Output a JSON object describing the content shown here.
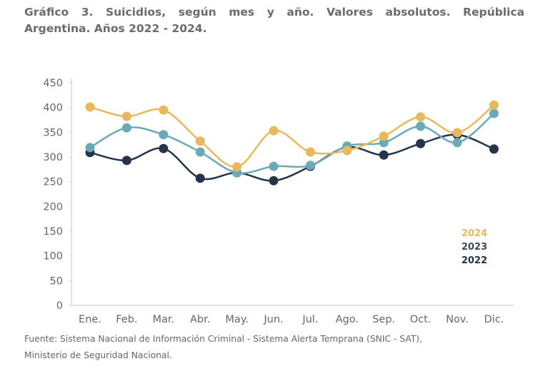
{
  "title_lines": [
    "Gráfico 3. Suicidios, según mes y año. Valores absolutos. República",
    "Argentina. Años 2022 - 2024."
  ],
  "source_lines": [
    "Fuente: Sistema Nacional de Información Criminal - Sistema Alerta Temprana (SNIC - SAT),",
    "Ministerio de Seguridad Nacional."
  ],
  "chart_data": {
    "type": "line",
    "categories": [
      "Ene.",
      "Feb.",
      "Mar.",
      "Abr.",
      "May.",
      "Jun.",
      "Jul.",
      "Ago.",
      "Sep.",
      "Oct.",
      "Nov.",
      "Dic."
    ],
    "ylim": [
      0,
      450
    ],
    "yticks": [
      0,
      50,
      100,
      150,
      200,
      250,
      300,
      350,
      400,
      450
    ],
    "grid": false,
    "legend_placement": "bottom-right",
    "series": [
      {
        "name": "2024",
        "color": "#E8B85C",
        "values": [
          401,
          382,
          395,
          332,
          280,
          353,
          310,
          313,
          342,
          381,
          349,
          405
        ]
      },
      {
        "name": "2023",
        "color": "#6AAAB8",
        "legend_color": "#3E4A57",
        "values": [
          319,
          359,
          345,
          310,
          268,
          281,
          283,
          322,
          329,
          362,
          329,
          388
        ]
      },
      {
        "name": "2022",
        "color": "#243449",
        "values": [
          309,
          293,
          317,
          257,
          268,
          252,
          281,
          320,
          304,
          327,
          345,
          316
        ]
      }
    ]
  }
}
